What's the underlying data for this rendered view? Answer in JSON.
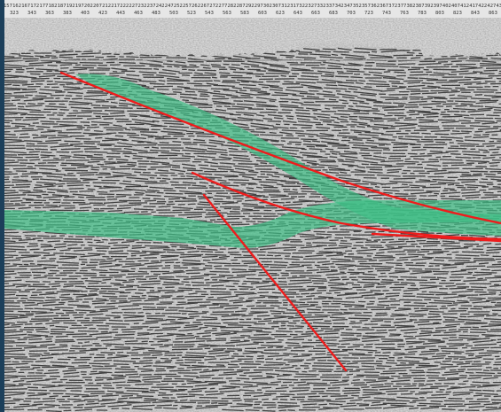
{
  "figure": {
    "type": "seismic reflection profile",
    "header": {
      "trace_labels": [
        "157",
        "162",
        "167",
        "172",
        "177",
        "182",
        "187",
        "192",
        "197",
        "202",
        "207",
        "212",
        "217",
        "222",
        "227",
        "232",
        "237",
        "242",
        "247",
        "252",
        "257",
        "262",
        "267",
        "272",
        "277",
        "282",
        "287",
        "292",
        "297",
        "302",
        "307",
        "312",
        "317",
        "322",
        "327",
        "332",
        "337",
        "342",
        "347",
        "352",
        "357",
        "362",
        "367",
        "372",
        "377",
        "382",
        "387",
        "392",
        "397",
        "402",
        "407",
        "412",
        "417",
        "422",
        "427",
        "432"
      ],
      "cdp_labels": [
        "323",
        "343",
        "363",
        "383",
        "403",
        "423",
        "443",
        "463",
        "483",
        "503",
        "523",
        "543",
        "563",
        "583",
        "603",
        "623",
        "643",
        "663",
        "683",
        "703",
        "723",
        "743",
        "763",
        "783",
        "803",
        "823",
        "843",
        "863"
      ]
    },
    "interpretation": {
      "horizon_fill_color": "#3fbf86",
      "fault_color": "#ee1c1c",
      "fault_count": 4,
      "horizon_count": 2
    }
  }
}
